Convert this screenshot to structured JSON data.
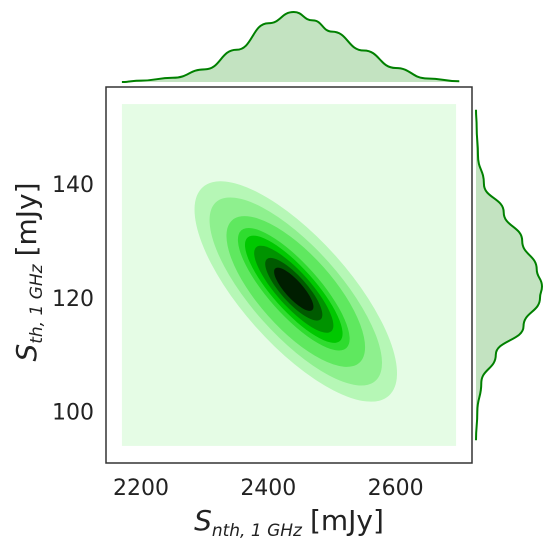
{
  "chart_data": {
    "type": "kde_joint",
    "xlabel": {
      "symbol": "S",
      "subscript": "nth, 1 GHz",
      "unit": "[mJy]"
    },
    "ylabel": {
      "symbol": "S",
      "subscript": "th, 1 GHz",
      "unit": "[mJy]"
    },
    "xlim": [
      2145,
      2720
    ],
    "ylim": [
      91,
      157
    ],
    "x_ticks": [
      2200,
      2400,
      2600
    ],
    "y_ticks": [
      100,
      120,
      140
    ],
    "grid": false,
    "joint_density": {
      "x_mean": 2440,
      "y_mean": 121.5,
      "x_std": 65,
      "y_std": 8,
      "correlation": -0.85,
      "support_x": [
        2170,
        2695
      ],
      "support_y": [
        94,
        154
      ],
      "levels": [
        0.08,
        0.18,
        0.3,
        0.42,
        0.55,
        0.68,
        0.8,
        0.9
      ]
    },
    "marginal_x": {
      "x": [
        2170,
        2200,
        2250,
        2300,
        2350,
        2400,
        2440,
        2470,
        2500,
        2550,
        2600,
        2650,
        2700
      ],
      "density": [
        0.0,
        0.02,
        0.06,
        0.18,
        0.46,
        0.84,
        1.0,
        0.88,
        0.72,
        0.45,
        0.2,
        0.05,
        0.01
      ]
    },
    "marginal_y": {
      "y": [
        95,
        100,
        105,
        110,
        115,
        120,
        122,
        125,
        130,
        135,
        140,
        145,
        150,
        153
      ],
      "density": [
        0.0,
        0.02,
        0.08,
        0.3,
        0.72,
        0.97,
        1.0,
        0.92,
        0.7,
        0.42,
        0.12,
        0.03,
        0.01,
        0.0
      ]
    },
    "colors": {
      "background_fill": "#e5fce5",
      "contour_fills": [
        "#b6f7b6",
        "#8ef08e",
        "#5fe85f",
        "#2fdc2f",
        "#00c800",
        "#009300",
        "#005a00",
        "#001e00"
      ],
      "marginal_line": "#008000",
      "marginal_fill": "#c3e3c1",
      "frame": "#333333"
    }
  }
}
